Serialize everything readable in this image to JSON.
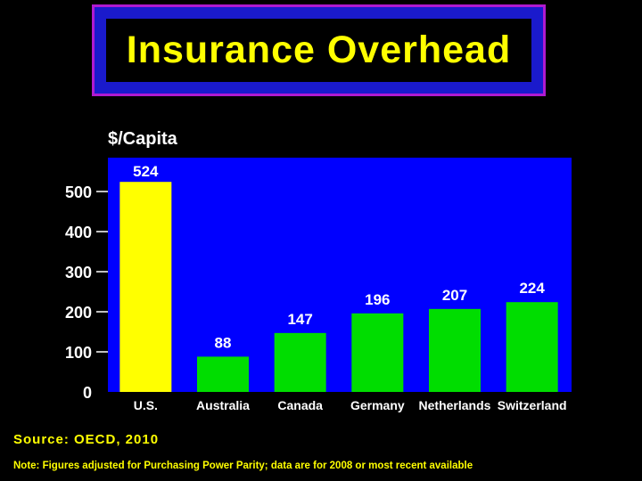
{
  "title": "Insurance Overhead",
  "source": "Source: OECD, 2010",
  "note": "Note: Figures adjusted for Purchasing Power Parity; data are for 2008 or most recent available",
  "colors": {
    "background": "#000000",
    "plot_area": "#0000ff",
    "title_accent": "#ffff00",
    "title_frame": "#1a1acc",
    "highlight_bar": "#ffff00",
    "other_bars": "#00dd00"
  },
  "chart_data": {
    "type": "bar",
    "ylabel": "$/Capita",
    "xlabel": "",
    "categories": [
      "U.S.",
      "Australia",
      "Canada",
      "Germany",
      "Netherlands",
      "Switzerland"
    ],
    "values": [
      524,
      88,
      147,
      196,
      207,
      224
    ],
    "ylim": [
      0,
      600
    ],
    "yticks": [
      0,
      100,
      200,
      300,
      400,
      500
    ],
    "highlight_category": "U.S.",
    "grid": false,
    "legend": "none"
  }
}
